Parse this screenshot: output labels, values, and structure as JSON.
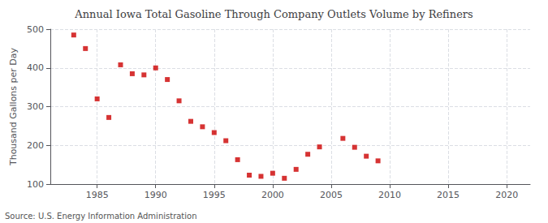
{
  "chart_data": {
    "type": "scatter",
    "title": "Annual Iowa Total Gasoline Through Company Outlets Volume by Refiners",
    "ylabel": "Thousand Gallons per Day",
    "source": "Source: U.S. Energy Information Administration",
    "color": "#cc0000",
    "marker": "square",
    "grid": true,
    "xlim": [
      1981,
      2022
    ],
    "ylim": [
      100,
      500
    ],
    "xticks": [
      1985,
      1990,
      1995,
      2000,
      2005,
      2010,
      2015,
      2020
    ],
    "yticks": [
      100,
      200,
      300,
      400,
      500
    ],
    "x": [
      1983,
      1984,
      1985,
      1986,
      1987,
      1988,
      1989,
      1990,
      1991,
      1992,
      1993,
      1994,
      1995,
      1996,
      1997,
      1998,
      1999,
      2000,
      2001,
      2002,
      2003,
      2004,
      2006,
      2007,
      2008,
      2009
    ],
    "values": [
      485,
      450,
      320,
      272,
      408,
      385,
      382,
      400,
      370,
      315,
      262,
      248,
      233,
      212,
      163,
      123,
      120,
      128,
      115,
      138,
      177,
      196,
      218,
      195,
      172,
      160
    ]
  }
}
